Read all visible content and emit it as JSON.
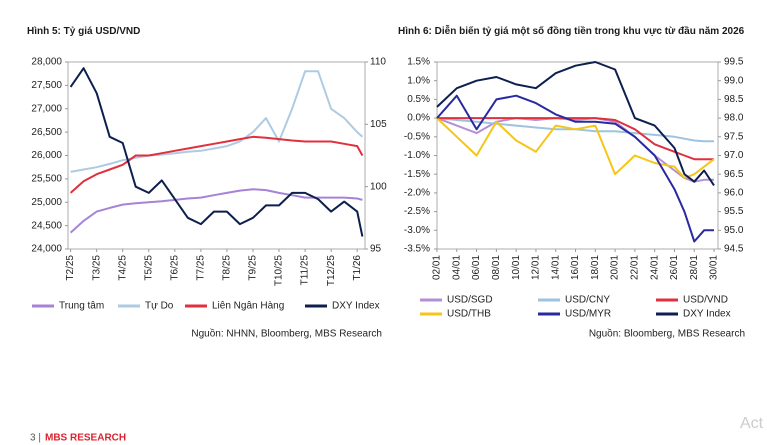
{
  "chart_data": [
    {
      "type": "line",
      "title": "Hình 5: Tỷ giá USD/VND",
      "x": [
        0,
        0.5,
        1,
        1.5,
        2,
        2.5,
        3,
        3.5,
        4,
        4.5,
        5,
        5.5,
        6,
        6.5,
        7,
        7.5,
        8,
        8.5,
        9,
        9.5,
        10,
        10.5,
        11,
        11.2
      ],
      "xlim": [
        -0.1,
        11.3
      ],
      "xticks": [
        {
          "value": 0,
          "label": "T2/25"
        },
        {
          "value": 1,
          "label": "T3/25"
        },
        {
          "value": 2,
          "label": "T4/25"
        },
        {
          "value": 3,
          "label": "T5/25"
        },
        {
          "value": 4,
          "label": "T6/25"
        },
        {
          "value": 5,
          "label": "T7/25"
        },
        {
          "value": 6,
          "label": "T8/25"
        },
        {
          "value": 7,
          "label": "T9/25"
        },
        {
          "value": 8,
          "label": "T10/25"
        },
        {
          "value": 9,
          "label": "T11/25"
        },
        {
          "value": 10,
          "label": "T12/25"
        },
        {
          "value": 11,
          "label": "T1/26"
        }
      ],
      "ylim": [
        24000,
        28000
      ],
      "yticks": [
        {
          "value": 24000,
          "label": "24,000"
        },
        {
          "value": 24500,
          "label": "24,500"
        },
        {
          "value": 25000,
          "label": "25,000"
        },
        {
          "value": 25500,
          "label": "25,500"
        },
        {
          "value": 26000,
          "label": "26,000"
        },
        {
          "value": 26500,
          "label": "26,500"
        },
        {
          "value": 27000,
          "label": "27,000"
        },
        {
          "value": 27500,
          "label": "27,500"
        },
        {
          "value": 28000,
          "label": "28,000"
        }
      ],
      "y2lim": [
        95,
        110
      ],
      "y2ticks": [
        95,
        100,
        105,
        110
      ],
      "series": [
        {
          "name": "Trung tâm",
          "color": "#a783d6",
          "values": [
            24350,
            24600,
            24800,
            24880,
            24950,
            24980,
            25000,
            25020,
            25050,
            25080,
            25100,
            25150,
            25200,
            25250,
            25280,
            25260,
            25200,
            25150,
            25100,
            25100,
            25100,
            25100,
            25080,
            25050
          ]
        },
        {
          "name": "Tự Do",
          "color": "#aecbe2",
          "values": [
            25650,
            25700,
            25750,
            25820,
            25900,
            25950,
            26000,
            26020,
            26050,
            26080,
            26100,
            26150,
            26200,
            26300,
            26500,
            26800,
            26300,
            27000,
            27800,
            27800,
            27000,
            26800,
            26500,
            26400
          ]
        },
        {
          "name": "Liên Ngân Hàng",
          "color": "#e0303e",
          "values": [
            25200,
            25450,
            25600,
            25700,
            25800,
            26000,
            26000,
            26050,
            26100,
            26150,
            26200,
            26250,
            26300,
            26350,
            26400,
            26380,
            26350,
            26320,
            26300,
            26300,
            26300,
            26250,
            26200,
            26000
          ]
        },
        {
          "name": "DXY Index",
          "color": "#0d1f4e",
          "axis": "y2",
          "values": [
            108,
            109.5,
            107.5,
            104,
            103.5,
            100,
            99.5,
            100.5,
            99,
            97.5,
            97,
            98,
            98,
            97,
            97.5,
            98.5,
            98.5,
            99.5,
            99.5,
            99,
            98,
            98.8,
            98,
            96
          ]
        }
      ],
      "source": "Nguồn: NHNN, Bloomberg, MBS Research"
    },
    {
      "type": "line",
      "title": "Hình 6: Diễn biến tỷ giá một số đồng tiền trong khu vực từ đầu năm 2026",
      "x": [
        2,
        4,
        6,
        8,
        10,
        12,
        14,
        16,
        18,
        20,
        22,
        24,
        26,
        27,
        28,
        29,
        30
      ],
      "xlim": [
        2,
        30.4
      ],
      "xticks": [
        {
          "value": 2,
          "label": "02/01"
        },
        {
          "value": 4,
          "label": "04/01"
        },
        {
          "value": 6,
          "label": "06/01"
        },
        {
          "value": 8,
          "label": "08/01"
        },
        {
          "value": 10,
          "label": "10/01"
        },
        {
          "value": 12,
          "label": "12/01"
        },
        {
          "value": 14,
          "label": "14/01"
        },
        {
          "value": 16,
          "label": "16/01"
        },
        {
          "value": 18,
          "label": "18/01"
        },
        {
          "value": 20,
          "label": "20/01"
        },
        {
          "value": 22,
          "label": "22/01"
        },
        {
          "value": 24,
          "label": "24/01"
        },
        {
          "value": 26,
          "label": "26/01"
        },
        {
          "value": 28,
          "label": "28/01"
        },
        {
          "value": 30,
          "label": "30/01"
        }
      ],
      "ylim": [
        -3.5,
        1.5
      ],
      "yticks": [
        {
          "value": -3.5,
          "label": "-3.5%"
        },
        {
          "value": -3,
          "label": "-3.0%"
        },
        {
          "value": -2.5,
          "label": "-2.5%"
        },
        {
          "value": -2,
          "label": "-2.0%"
        },
        {
          "value": -1.5,
          "label": "-1.5%"
        },
        {
          "value": -1,
          "label": "-1.0%"
        },
        {
          "value": -0.5,
          "label": "-0.5%"
        },
        {
          "value": 0,
          "label": "0.0%"
        },
        {
          "value": 0.5,
          "label": "0.5%"
        },
        {
          "value": 1,
          "label": "1.0%"
        },
        {
          "value": 1.5,
          "label": "1.5%"
        }
      ],
      "y2lim": [
        94.5,
        99.5
      ],
      "y2ticks": [
        94.5,
        {
          "value": 95,
          "label": "95.0"
        },
        95.5,
        {
          "value": 96,
          "label": "96.0"
        },
        96.5,
        {
          "value": 97,
          "label": "97.0"
        },
        97.5,
        {
          "value": 98,
          "label": "98.0"
        },
        98.5,
        {
          "value": 99,
          "label": "99.0"
        },
        99.5
      ],
      "series": [
        {
          "name": "USD/SGD",
          "color": "#b58fd6",
          "values": [
            0,
            -0.2,
            -0.4,
            -0.1,
            0,
            -0.05,
            0,
            -0.05,
            0,
            -0.1,
            -0.5,
            -1.0,
            -1.4,
            -1.6,
            -1.7,
            -1.65,
            -1.65
          ]
        },
        {
          "name": "USD/CNY",
          "color": "#9ec3e0",
          "values": [
            0,
            -0.05,
            -0.1,
            -0.15,
            -0.2,
            -0.25,
            -0.3,
            -0.3,
            -0.35,
            -0.35,
            -0.4,
            -0.45,
            -0.5,
            -0.55,
            -0.6,
            -0.62,
            -0.62
          ]
        },
        {
          "name": "USD/VND",
          "color": "#e0303e",
          "values": [
            0,
            0,
            0,
            0,
            0,
            0,
            0,
            0,
            0,
            -0.05,
            -0.3,
            -0.7,
            -0.9,
            -1.0,
            -1.1,
            -1.1,
            -1.1
          ]
        },
        {
          "name": "USD/THB",
          "color": "#f5c518",
          "values": [
            0,
            -0.5,
            -1.0,
            -0.1,
            -0.6,
            -0.9,
            -0.2,
            -0.3,
            -0.2,
            -1.5,
            -1.0,
            -1.2,
            -1.3,
            -1.6,
            -1.5,
            -1.3,
            -1.1
          ]
        },
        {
          "name": "USD/MYR",
          "color": "#2a2aa0",
          "values": [
            0,
            0.6,
            -0.3,
            0.5,
            0.6,
            0.4,
            0.1,
            -0.1,
            -0.1,
            -0.15,
            -0.5,
            -1.0,
            -1.9,
            -2.5,
            -3.3,
            -3.0,
            -3.0
          ]
        },
        {
          "name": "DXY Index",
          "color": "#0d1f4e",
          "axis": "y2",
          "values": [
            98.3,
            98.8,
            99.0,
            99.1,
            98.9,
            98.8,
            99.2,
            99.4,
            99.5,
            99.3,
            98.0,
            97.8,
            97.2,
            96.5,
            96.3,
            96.6,
            96.2
          ]
        }
      ],
      "source": "Nguồn: Bloomberg, MBS Research"
    }
  ],
  "footer": {
    "page": "3 |",
    "brand": "MBS RESEARCH"
  },
  "watermark": "Act"
}
